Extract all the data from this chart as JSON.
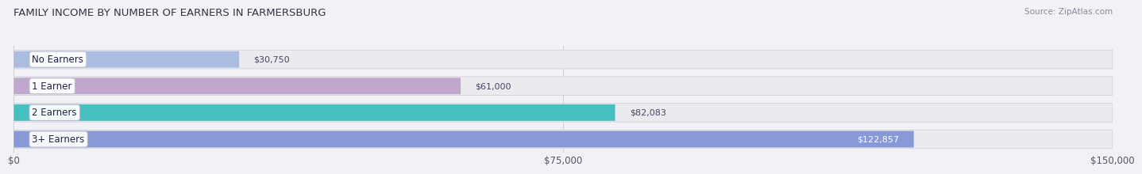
{
  "title": "FAMILY INCOME BY NUMBER OF EARNERS IN FARMERSBURG",
  "source": "Source: ZipAtlas.com",
  "categories": [
    "No Earners",
    "1 Earner",
    "2 Earners",
    "3+ Earners"
  ],
  "values": [
    30750,
    61000,
    82083,
    122857
  ],
  "bar_colors": [
    "#aabde0",
    "#c0a8cc",
    "#45bfbf",
    "#8899d8"
  ],
  "bar_bg_color": "#eaeaef",
  "bar_bg_edge_color": "#d0d0de",
  "value_inside": [
    false,
    false,
    false,
    true
  ],
  "xlim": [
    0,
    150000
  ],
  "xticks": [
    0,
    75000,
    150000
  ],
  "xtick_labels": [
    "$0",
    "$75,000",
    "$150,000"
  ],
  "background_color": "#f2f2f6",
  "bar_height": 0.62,
  "title_fontsize": 9.5,
  "label_fontsize": 8.5,
  "tick_fontsize": 8.5,
  "value_fontsize": 8.0,
  "source_fontsize": 7.5
}
